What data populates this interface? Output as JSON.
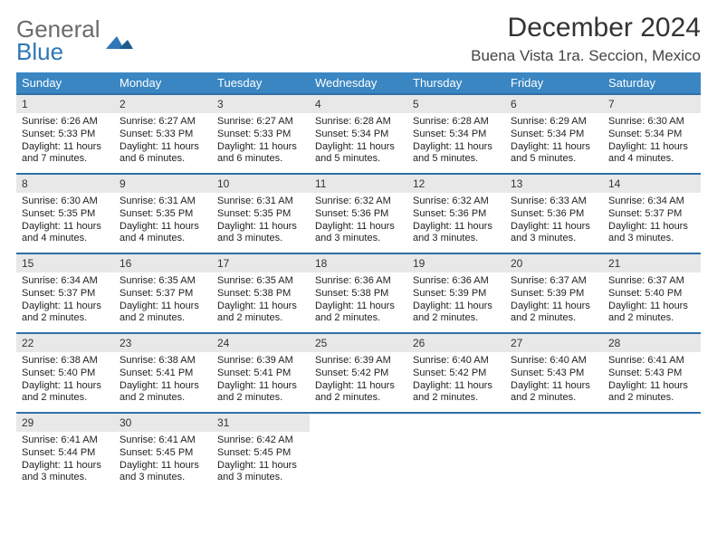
{
  "brand": {
    "word1": "General",
    "word2": "Blue"
  },
  "title": "December 2024",
  "location": "Buena Vista 1ra. Seccion, Mexico",
  "colors": {
    "header_bg": "#3a86c2",
    "row_sep": "#2f6fa8",
    "daynum_bg": "#e8e8e8",
    "brand_gray": "#6b6b6b",
    "brand_blue": "#2f77b6"
  },
  "days_of_week": [
    "Sunday",
    "Monday",
    "Tuesday",
    "Wednesday",
    "Thursday",
    "Friday",
    "Saturday"
  ],
  "weeks": [
    [
      {
        "n": "1",
        "sr": "6:26 AM",
        "ss": "5:33 PM",
        "dl": "11 hours and 7 minutes."
      },
      {
        "n": "2",
        "sr": "6:27 AM",
        "ss": "5:33 PM",
        "dl": "11 hours and 6 minutes."
      },
      {
        "n": "3",
        "sr": "6:27 AM",
        "ss": "5:33 PM",
        "dl": "11 hours and 6 minutes."
      },
      {
        "n": "4",
        "sr": "6:28 AM",
        "ss": "5:34 PM",
        "dl": "11 hours and 5 minutes."
      },
      {
        "n": "5",
        "sr": "6:28 AM",
        "ss": "5:34 PM",
        "dl": "11 hours and 5 minutes."
      },
      {
        "n": "6",
        "sr": "6:29 AM",
        "ss": "5:34 PM",
        "dl": "11 hours and 5 minutes."
      },
      {
        "n": "7",
        "sr": "6:30 AM",
        "ss": "5:34 PM",
        "dl": "11 hours and 4 minutes."
      }
    ],
    [
      {
        "n": "8",
        "sr": "6:30 AM",
        "ss": "5:35 PM",
        "dl": "11 hours and 4 minutes."
      },
      {
        "n": "9",
        "sr": "6:31 AM",
        "ss": "5:35 PM",
        "dl": "11 hours and 4 minutes."
      },
      {
        "n": "10",
        "sr": "6:31 AM",
        "ss": "5:35 PM",
        "dl": "11 hours and 3 minutes."
      },
      {
        "n": "11",
        "sr": "6:32 AM",
        "ss": "5:36 PM",
        "dl": "11 hours and 3 minutes."
      },
      {
        "n": "12",
        "sr": "6:32 AM",
        "ss": "5:36 PM",
        "dl": "11 hours and 3 minutes."
      },
      {
        "n": "13",
        "sr": "6:33 AM",
        "ss": "5:36 PM",
        "dl": "11 hours and 3 minutes."
      },
      {
        "n": "14",
        "sr": "6:34 AM",
        "ss": "5:37 PM",
        "dl": "11 hours and 3 minutes."
      }
    ],
    [
      {
        "n": "15",
        "sr": "6:34 AM",
        "ss": "5:37 PM",
        "dl": "11 hours and 2 minutes."
      },
      {
        "n": "16",
        "sr": "6:35 AM",
        "ss": "5:37 PM",
        "dl": "11 hours and 2 minutes."
      },
      {
        "n": "17",
        "sr": "6:35 AM",
        "ss": "5:38 PM",
        "dl": "11 hours and 2 minutes."
      },
      {
        "n": "18",
        "sr": "6:36 AM",
        "ss": "5:38 PM",
        "dl": "11 hours and 2 minutes."
      },
      {
        "n": "19",
        "sr": "6:36 AM",
        "ss": "5:39 PM",
        "dl": "11 hours and 2 minutes."
      },
      {
        "n": "20",
        "sr": "6:37 AM",
        "ss": "5:39 PM",
        "dl": "11 hours and 2 minutes."
      },
      {
        "n": "21",
        "sr": "6:37 AM",
        "ss": "5:40 PM",
        "dl": "11 hours and 2 minutes."
      }
    ],
    [
      {
        "n": "22",
        "sr": "6:38 AM",
        "ss": "5:40 PM",
        "dl": "11 hours and 2 minutes."
      },
      {
        "n": "23",
        "sr": "6:38 AM",
        "ss": "5:41 PM",
        "dl": "11 hours and 2 minutes."
      },
      {
        "n": "24",
        "sr": "6:39 AM",
        "ss": "5:41 PM",
        "dl": "11 hours and 2 minutes."
      },
      {
        "n": "25",
        "sr": "6:39 AM",
        "ss": "5:42 PM",
        "dl": "11 hours and 2 minutes."
      },
      {
        "n": "26",
        "sr": "6:40 AM",
        "ss": "5:42 PM",
        "dl": "11 hours and 2 minutes."
      },
      {
        "n": "27",
        "sr": "6:40 AM",
        "ss": "5:43 PM",
        "dl": "11 hours and 2 minutes."
      },
      {
        "n": "28",
        "sr": "6:41 AM",
        "ss": "5:43 PM",
        "dl": "11 hours and 2 minutes."
      }
    ],
    [
      {
        "n": "29",
        "sr": "6:41 AM",
        "ss": "5:44 PM",
        "dl": "11 hours and 3 minutes."
      },
      {
        "n": "30",
        "sr": "6:41 AM",
        "ss": "5:45 PM",
        "dl": "11 hours and 3 minutes."
      },
      {
        "n": "31",
        "sr": "6:42 AM",
        "ss": "5:45 PM",
        "dl": "11 hours and 3 minutes."
      },
      null,
      null,
      null,
      null
    ]
  ],
  "labels": {
    "sunrise": "Sunrise:",
    "sunset": "Sunset:",
    "daylight": "Daylight:"
  }
}
